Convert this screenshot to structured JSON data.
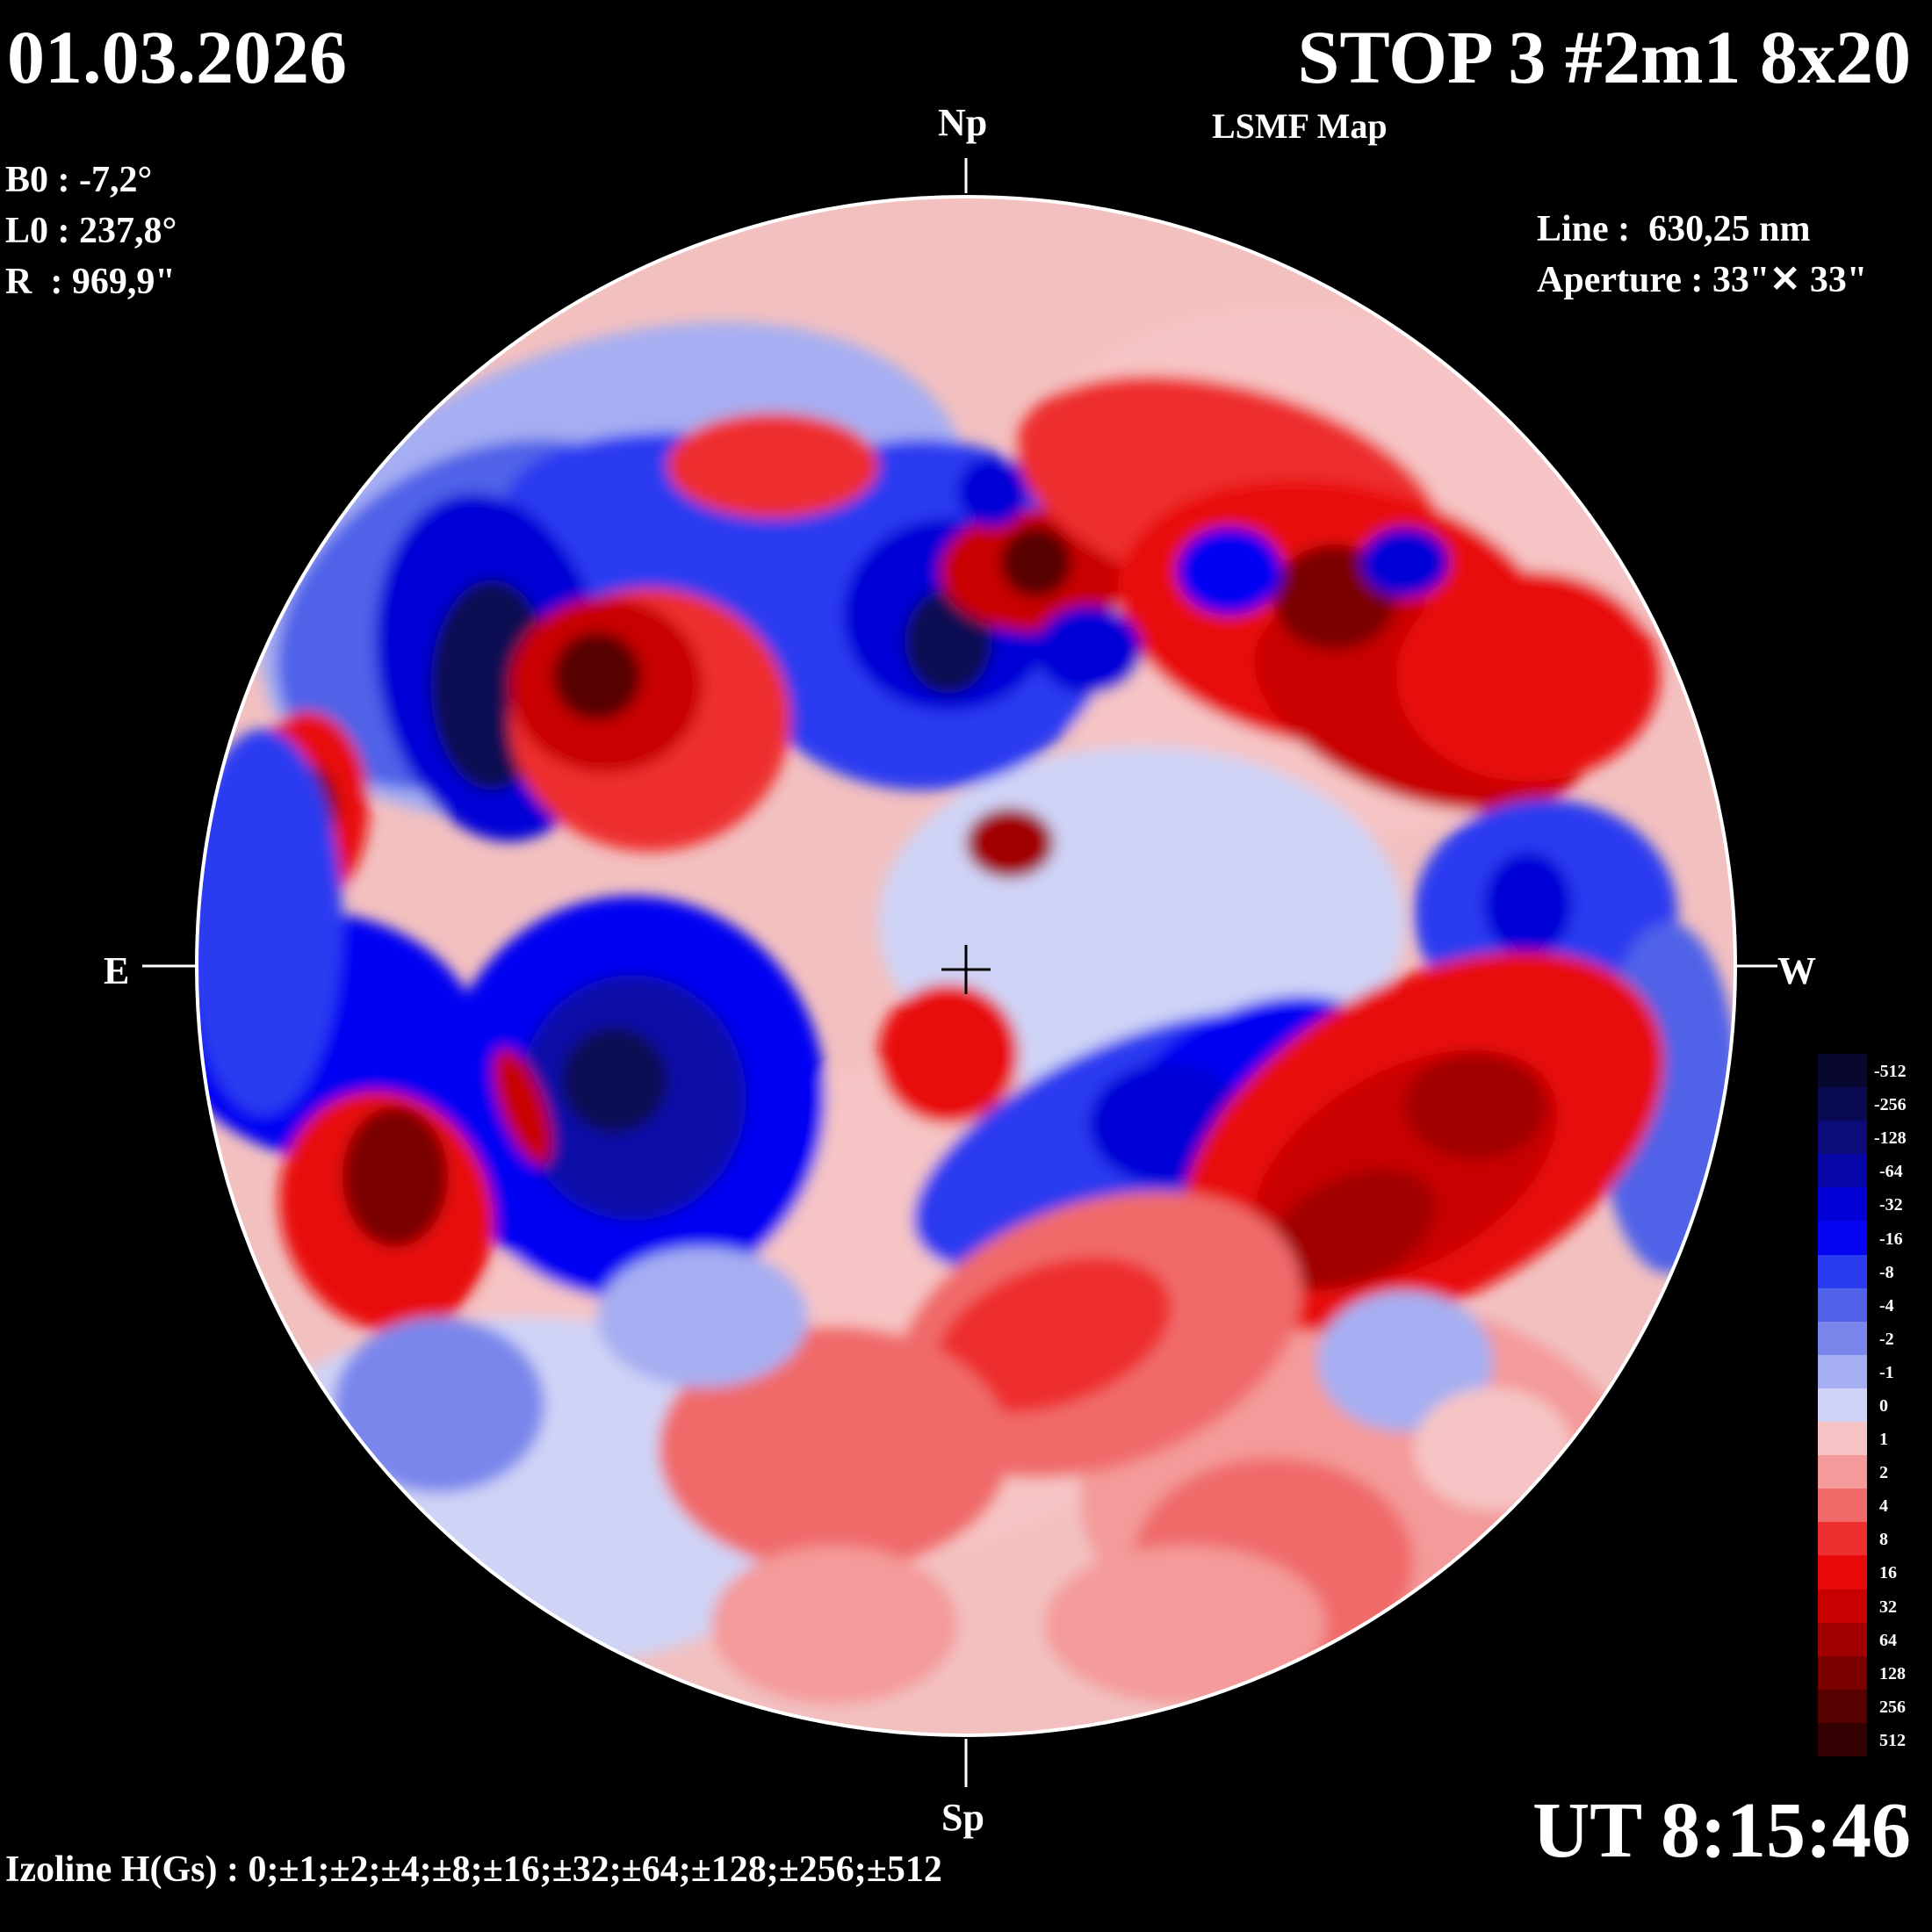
{
  "header": {
    "date": "01.03.2026",
    "title": "STOP 3 #2m1 8x20",
    "subtitle": "LSMF  Map"
  },
  "params": {
    "b0": "B0 : -7,2°",
    "l0": "L0 : 237,8°",
    "r": "R  : 969,9\""
  },
  "instrument": {
    "line": "Line :  630,25 nm",
    "aperture": "Aperture : 33\"✕ 33\""
  },
  "directions": {
    "north": "Np",
    "south": "Sp",
    "east": "E",
    "west": "W"
  },
  "footer": {
    "ut": "UT 8:15:46",
    "izoline": "Izoline H(Gs) : 0;±1;±2;±4;±8;±16;±32;±64;±128;±256;±512"
  },
  "legend": {
    "levels": [
      {
        "label": "-512",
        "color": "#07072f"
      },
      {
        "label": "-256",
        "color": "#0a0a52"
      },
      {
        "label": "-128",
        "color": "#0b0b7a"
      },
      {
        "label": "-64",
        "color": "#0707a8"
      },
      {
        "label": "-32",
        "color": "#0000d6"
      },
      {
        "label": "-16",
        "color": "#0505f2"
      },
      {
        "label": "-8",
        "color": "#2a3bf0"
      },
      {
        "label": "-4",
        "color": "#4f62e8"
      },
      {
        "label": "-2",
        "color": "#7a86ec"
      },
      {
        "label": "-1",
        "color": "#a6aef2"
      },
      {
        "label": "0",
        "color": "#cfd3f6"
      },
      {
        "label": "1",
        "color": "#f6c4c4"
      },
      {
        "label": "2",
        "color": "#f49a9a"
      },
      {
        "label": "4",
        "color": "#f06a6a"
      },
      {
        "label": "8",
        "color": "#ee2f2f"
      },
      {
        "label": "16",
        "color": "#e80a0a"
      },
      {
        "label": "32",
        "color": "#c80000"
      },
      {
        "label": "64",
        "color": "#a00000"
      },
      {
        "label": "128",
        "color": "#7a0000"
      },
      {
        "label": "256",
        "color": "#560000"
      },
      {
        "label": "512",
        "color": "#320000"
      }
    ]
  }
}
